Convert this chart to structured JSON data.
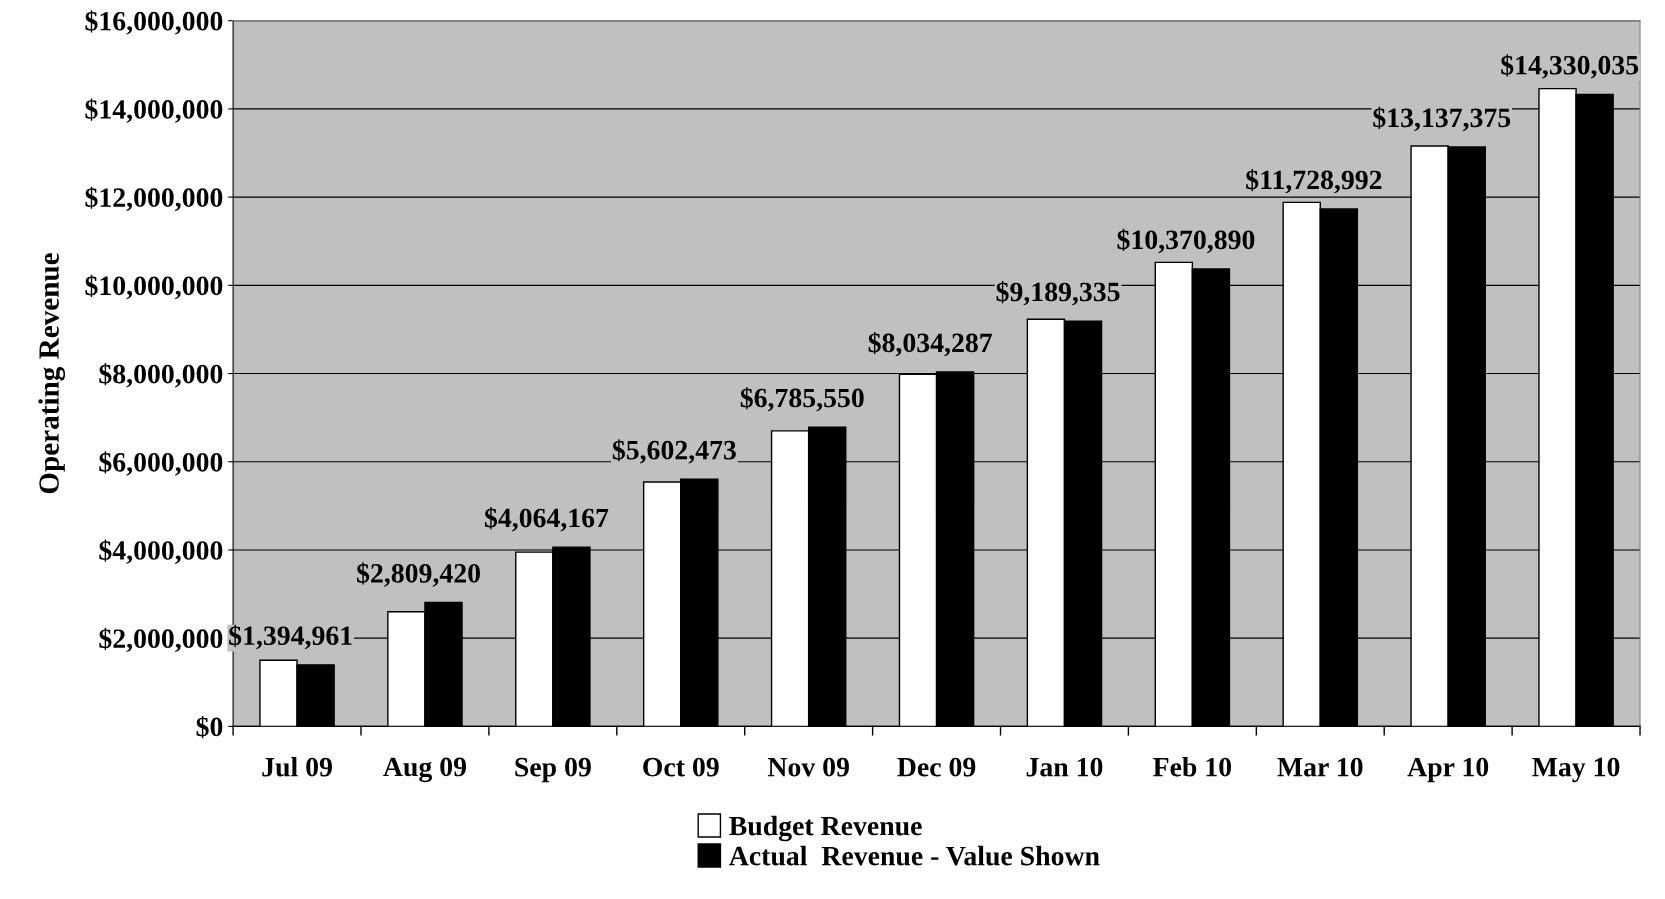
{
  "chart_data": {
    "type": "bar",
    "ylabel": "Operating Revenue",
    "categories": [
      "Jul 09",
      "Aug 09",
      "Sep 09",
      "Oct 09",
      "Nov 09",
      "Dec 09",
      "Jan 10",
      "Feb 10",
      "Mar 10",
      "Apr 10",
      "May 10"
    ],
    "series": [
      {
        "name": "Budget Revenue",
        "color": "#ffffff",
        "values": [
          1500000,
          2600000,
          3950000,
          5540000,
          6700000,
          7980000,
          9230000,
          10520000,
          11880000,
          13160000,
          14460000
        ]
      },
      {
        "name": "Actual  Revenue - Value Shown",
        "color": "#000000",
        "values": [
          1394961,
          2809420,
          4064167,
          5602473,
          6785550,
          8034287,
          9189335,
          10370890,
          11728992,
          13137375,
          14330035
        ],
        "value_labels": [
          "$1,394,961",
          "$2,809,420",
          "$4,064,167",
          "$5,602,473",
          "$6,785,550",
          "$8,034,287",
          "$9,189,335",
          "$10,370,890",
          "$11,728,992",
          "$13,137,375",
          "$14,330,035"
        ]
      }
    ],
    "ylim": [
      0,
      16000000
    ],
    "yticks": [
      {
        "value": 0,
        "label": "$0"
      },
      {
        "value": 2000000,
        "label": "$2,000,000"
      },
      {
        "value": 4000000,
        "label": "$4,000,000"
      },
      {
        "value": 6000000,
        "label": "$6,000,000"
      },
      {
        "value": 8000000,
        "label": "$8,000,000"
      },
      {
        "value": 10000000,
        "label": "$10,000,000"
      },
      {
        "value": 12000000,
        "label": "$12,000,000"
      },
      {
        "value": 14000000,
        "label": "$14,000,000"
      },
      {
        "value": 16000000,
        "label": "$16,000,000"
      }
    ],
    "grid": "y",
    "legend": "bottom"
  }
}
